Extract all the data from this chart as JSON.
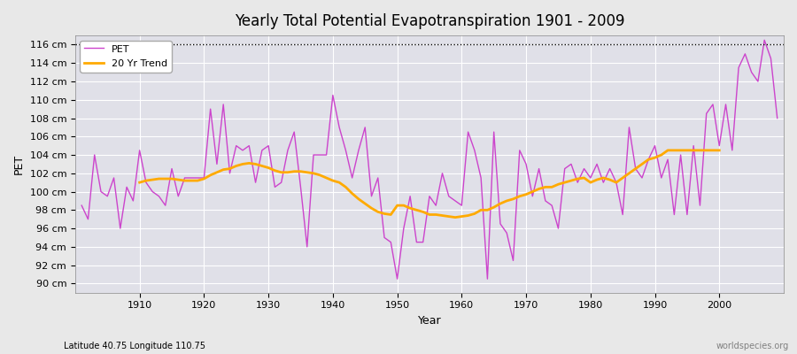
{
  "title": "Yearly Total Potential Evapotranspiration 1901 - 2009",
  "xlabel": "Year",
  "ylabel": "PET",
  "subtitle": "Latitude 40.75 Longitude 110.75",
  "watermark": "worldspecies.org",
  "ylim": [
    89,
    117
  ],
  "ytick_min": 90,
  "ytick_max": 116,
  "ytick_step": 2,
  "years": [
    1901,
    1902,
    1903,
    1904,
    1905,
    1906,
    1907,
    1908,
    1909,
    1910,
    1911,
    1912,
    1913,
    1914,
    1915,
    1916,
    1917,
    1918,
    1919,
    1920,
    1921,
    1922,
    1923,
    1924,
    1925,
    1926,
    1927,
    1928,
    1929,
    1930,
    1931,
    1932,
    1933,
    1934,
    1935,
    1936,
    1937,
    1938,
    1939,
    1940,
    1941,
    1942,
    1943,
    1944,
    1945,
    1946,
    1947,
    1948,
    1949,
    1950,
    1951,
    1952,
    1953,
    1954,
    1955,
    1956,
    1957,
    1958,
    1959,
    1960,
    1961,
    1962,
    1963,
    1964,
    1965,
    1966,
    1967,
    1968,
    1969,
    1970,
    1971,
    1972,
    1973,
    1974,
    1975,
    1976,
    1977,
    1978,
    1979,
    1980,
    1981,
    1982,
    1983,
    1984,
    1985,
    1986,
    1987,
    1988,
    1989,
    1990,
    1991,
    1992,
    1993,
    1994,
    1995,
    1996,
    1997,
    1998,
    1999,
    2000,
    2001,
    2002,
    2003,
    2004,
    2005,
    2006,
    2007,
    2008,
    2009
  ],
  "pet": [
    98.5,
    97.0,
    104.0,
    100.0,
    99.5,
    101.5,
    96.0,
    100.5,
    99.0,
    104.5,
    101.0,
    100.0,
    99.5,
    98.5,
    102.5,
    99.5,
    101.5,
    101.5,
    101.5,
    101.5,
    109.0,
    103.0,
    109.5,
    102.0,
    105.0,
    104.5,
    105.0,
    101.0,
    104.5,
    105.0,
    100.5,
    101.0,
    104.5,
    106.5,
    100.5,
    94.0,
    104.0,
    104.0,
    104.0,
    110.5,
    107.0,
    104.5,
    101.5,
    104.5,
    107.0,
    99.5,
    101.5,
    95.0,
    94.5,
    90.5,
    96.0,
    99.5,
    94.5,
    94.5,
    99.5,
    98.5,
    102.0,
    99.5,
    99.0,
    98.5,
    106.5,
    104.5,
    101.5,
    90.5,
    106.5,
    96.5,
    95.5,
    92.5,
    104.5,
    103.0,
    99.5,
    102.5,
    99.0,
    98.5,
    96.0,
    102.5,
    103.0,
    101.0,
    102.5,
    101.5,
    103.0,
    101.0,
    102.5,
    101.0,
    97.5,
    107.0,
    102.5,
    101.5,
    103.5,
    105.0,
    101.5,
    103.5,
    97.5,
    104.0,
    97.5,
    105.0,
    98.5,
    108.5,
    109.5,
    105.0,
    109.5,
    104.5,
    113.5,
    115.0,
    113.0,
    112.0,
    116.5,
    114.5,
    108.0
  ],
  "trend": [
    null,
    null,
    null,
    null,
    null,
    null,
    null,
    null,
    null,
    101.0,
    101.2,
    101.3,
    101.4,
    101.4,
    101.4,
    101.3,
    101.2,
    101.2,
    101.2,
    101.4,
    101.8,
    102.1,
    102.4,
    102.5,
    102.8,
    103.0,
    103.1,
    103.0,
    102.8,
    102.6,
    102.3,
    102.1,
    102.1,
    102.2,
    102.2,
    102.1,
    102.0,
    101.8,
    101.5,
    101.2,
    101.0,
    100.5,
    99.8,
    99.2,
    98.7,
    98.2,
    97.8,
    97.6,
    97.5,
    98.5,
    98.5,
    98.2,
    98.0,
    97.8,
    97.5,
    97.5,
    97.4,
    97.3,
    97.2,
    97.3,
    97.4,
    97.6,
    98.0,
    98.0,
    98.3,
    98.7,
    99.0,
    99.2,
    99.5,
    99.7,
    100.0,
    100.3,
    100.5,
    100.5,
    100.8,
    101.0,
    101.2,
    101.4,
    101.5,
    101.0,
    101.3,
    101.5,
    101.3,
    101.0,
    101.5,
    102.0,
    102.5,
    103.0,
    103.5,
    103.7,
    104.0,
    104.5,
    104.5,
    104.5,
    104.5,
    104.5,
    104.5,
    104.5,
    104.5,
    104.5,
    null,
    null,
    null,
    null,
    null,
    null,
    null,
    null,
    null
  ],
  "pet_color": "#cc44cc",
  "trend_color": "#ffaa00",
  "bg_color": "#e8e8e8",
  "plot_bg_color": "#e0e0e8",
  "grid_color": "#ffffff",
  "dotted_line_y": 116,
  "legend_pet_color": "#cc44cc",
  "legend_trend_color": "#ffaa00"
}
